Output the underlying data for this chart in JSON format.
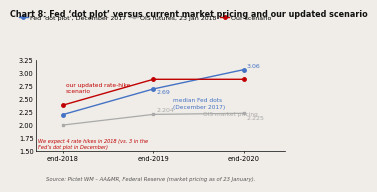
{
  "title": "Chart 8: Fed ‘dot plot’ versus current market pricing and our updated scenario",
  "source": "Source: Pictet WM – AA&MR, Federal Reserve (market pricing as of 23 January).",
  "x_labels": [
    "end-2018",
    "end-2019",
    "end-2020"
  ],
  "x_values": [
    0,
    1,
    2
  ],
  "fed_dot_plot": [
    2.2,
    2.69,
    3.06
  ],
  "ois_futures": [
    2.0,
    2.204,
    2.225
  ],
  "our_scenario": [
    2.38,
    2.875,
    2.875
  ],
  "fed_dot_color": "#4472c4",
  "ois_color": "#aaaaaa",
  "our_scenario_color": "#c00000",
  "ylim": [
    1.5,
    3.25
  ],
  "yticks": [
    1.5,
    1.75,
    2.0,
    2.25,
    2.5,
    2.75,
    3.0,
    3.25
  ],
  "annotation_fed_2019": "2.69",
  "annotation_fed_2020": "3.06",
  "annotation_ois_2019": "2.204",
  "annotation_ois_2020": "2.225",
  "legend_fed": "Fed ‘dot plot’, December 2017",
  "legend_ois": "OIS futures, 23 Jan 2018",
  "legend_our": "Our scenario",
  "label_fed": "median Fed dots\n(December 2017)",
  "label_ois": "OIS market pricing",
  "label_our": "our updated rate-hike\nscenario",
  "annotation_italic": "We expect 4 rate hikes in 2018 (vs. 3 in the\nFed’s dot plot in December)",
  "bg_color": "#f0ede8",
  "title_fontsize": 5.8,
  "tick_fontsize": 4.8,
  "legend_fontsize": 4.5,
  "annot_fontsize": 4.5,
  "label_fontsize": 4.2,
  "source_fontsize": 3.8
}
